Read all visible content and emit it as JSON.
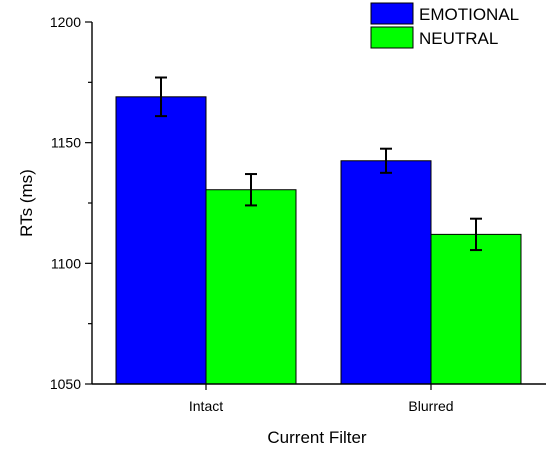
{
  "chart_data": {
    "type": "bar",
    "title": "",
    "xlabel": "Current Filter",
    "ylabel": "RTs (ms)",
    "categories": [
      "Intact",
      "Blurred"
    ],
    "series": [
      {
        "name": "EMOTIONAL",
        "color": "#0000ff",
        "values": [
          1169,
          1142.5
        ],
        "error": [
          8,
          5
        ]
      },
      {
        "name": "NEUTRAL",
        "color": "#00ff00",
        "values": [
          1130.5,
          1112
        ],
        "error": [
          6.5,
          6.5
        ]
      }
    ],
    "ylim": [
      1050,
      1200
    ],
    "yticks": [
      1050,
      1100,
      1150,
      1200
    ],
    "ytick_labels": [
      "1050",
      "1100",
      "1150",
      "1200"
    ],
    "grid": false,
    "legend_position": "top-right"
  }
}
